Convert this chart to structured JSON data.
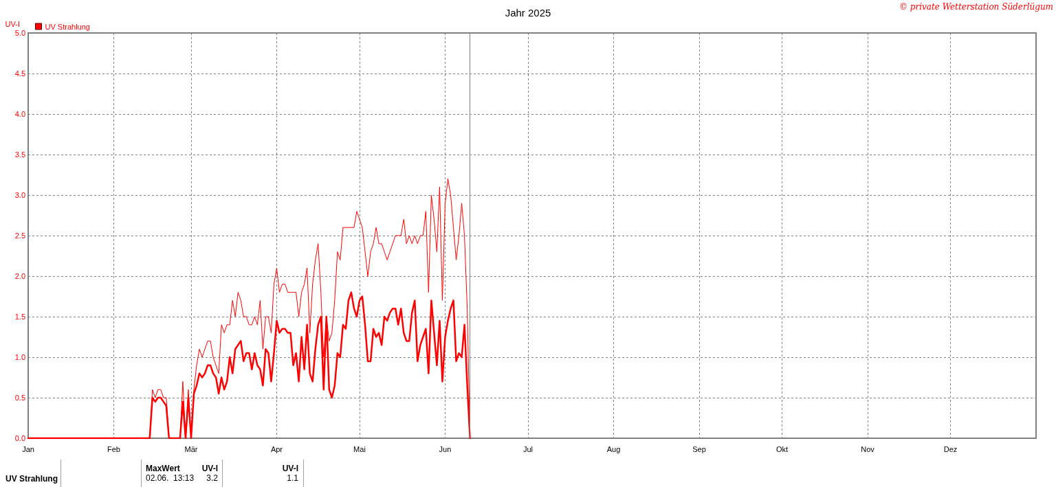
{
  "chart_data": {
    "type": "line",
    "title": "Jahr 2025",
    "ylabel": "UV-I",
    "x": [
      "2025-01-01",
      "2025-02-14",
      "2025-02-15",
      "2025-02-16",
      "2025-02-17",
      "2025-02-18",
      "2025-02-19",
      "2025-02-20",
      "2025-02-21",
      "2025-02-25",
      "2025-02-26",
      "2025-02-27",
      "2025-02-28",
      "2025-03-01",
      "2025-03-02",
      "2025-03-03",
      "2025-03-04",
      "2025-03-05",
      "2025-03-06",
      "2025-03-07",
      "2025-03-08",
      "2025-03-09",
      "2025-03-10",
      "2025-03-11",
      "2025-03-12",
      "2025-03-13",
      "2025-03-14",
      "2025-03-15",
      "2025-03-16",
      "2025-03-17",
      "2025-03-18",
      "2025-03-19",
      "2025-03-20",
      "2025-03-21",
      "2025-03-22",
      "2025-03-23",
      "2025-03-24",
      "2025-03-25",
      "2025-03-26",
      "2025-03-27",
      "2025-03-28",
      "2025-03-29",
      "2025-03-30",
      "2025-03-31",
      "2025-04-01",
      "2025-04-02",
      "2025-04-03",
      "2025-04-04",
      "2025-04-05",
      "2025-04-06",
      "2025-04-07",
      "2025-04-08",
      "2025-04-09",
      "2025-04-10",
      "2025-04-11",
      "2025-04-12",
      "2025-04-13",
      "2025-04-14",
      "2025-04-15",
      "2025-04-16",
      "2025-04-17",
      "2025-04-18",
      "2025-04-19",
      "2025-04-20",
      "2025-04-21",
      "2025-04-22",
      "2025-04-23",
      "2025-04-24",
      "2025-04-25",
      "2025-04-26",
      "2025-04-27",
      "2025-04-28",
      "2025-04-29",
      "2025-04-30",
      "2025-05-01",
      "2025-05-02",
      "2025-05-03",
      "2025-05-04",
      "2025-05-05",
      "2025-05-06",
      "2025-05-07",
      "2025-05-08",
      "2025-05-09",
      "2025-05-10",
      "2025-05-11",
      "2025-05-12",
      "2025-05-13",
      "2025-05-14",
      "2025-05-15",
      "2025-05-16",
      "2025-05-17",
      "2025-05-18",
      "2025-05-19",
      "2025-05-20",
      "2025-05-21",
      "2025-05-22",
      "2025-05-23",
      "2025-05-24",
      "2025-05-25",
      "2025-05-26",
      "2025-05-27",
      "2025-05-28",
      "2025-05-29",
      "2025-05-30",
      "2025-05-31",
      "2025-06-01",
      "2025-06-02",
      "2025-06-03",
      "2025-06-04",
      "2025-06-05",
      "2025-06-06",
      "2025-06-07",
      "2025-06-08",
      "2025-06-09",
      "2025-06-10"
    ],
    "series": [
      {
        "name": "UV Strahlung",
        "color": "#ff0000",
        "values": [
          0,
          0,
          0.6,
          0.5,
          0.6,
          0.6,
          0.5,
          0.5,
          0,
          0,
          0.7,
          0,
          0.6,
          0,
          0.6,
          0.9,
          1.1,
          1.0,
          1.1,
          1.2,
          1.2,
          1.0,
          0.9,
          0.8,
          1.4,
          1.3,
          1.4,
          1.4,
          1.7,
          1.5,
          1.8,
          1.7,
          1.5,
          1.5,
          1.4,
          1.4,
          1.5,
          1.4,
          1.7,
          1.1,
          1.5,
          1.5,
          1.3,
          1.9,
          2.1,
          1.8,
          1.9,
          1.9,
          1.8,
          1.8,
          1.8,
          1.8,
          1.5,
          1.8,
          1.9,
          2.1,
          1.3,
          1.9,
          2.2,
          2.4,
          1.8,
          1.0,
          1.5,
          1.2,
          1.3,
          1.7,
          2.3,
          2.2,
          2.6,
          2.6,
          2.6,
          2.6,
          2.6,
          2.8,
          2.7,
          2.6,
          2.3,
          2.0,
          2.3,
          2.4,
          2.6,
          2.4,
          2.4,
          2.3,
          2.2,
          2.3,
          2.4,
          2.5,
          2.5,
          2.5,
          2.7,
          2.4,
          2.5,
          2.4,
          2.5,
          2.4,
          2.5,
          2.5,
          2.8,
          1.8,
          3.0,
          2.7,
          2.3,
          3.1,
          1.7,
          2.9,
          3.2,
          3.0,
          2.6,
          2.2,
          2.5,
          2.9,
          2.5,
          1.6,
          0
        ]
      },
      {
        "color": "#ff0000",
        "values": [
          0,
          0,
          0.5,
          0.45,
          0.5,
          0.5,
          0.45,
          0.4,
          0,
          0,
          0.45,
          0,
          0.5,
          0,
          0.55,
          0.65,
          0.8,
          0.75,
          0.8,
          0.9,
          0.9,
          0.8,
          0.75,
          0.55,
          0.75,
          0.6,
          0.7,
          1.0,
          0.8,
          1.1,
          1.15,
          1.2,
          0.95,
          1.05,
          1.05,
          0.85,
          1.05,
          0.9,
          0.85,
          0.65,
          1.1,
          1.05,
          0.7,
          1.05,
          1.45,
          1.3,
          1.35,
          1.35,
          1.3,
          1.3,
          0.9,
          1.05,
          0.7,
          1.25,
          0.85,
          1.4,
          0.8,
          0.7,
          1.1,
          1.4,
          1.5,
          0.6,
          1.5,
          0.6,
          0.5,
          0.65,
          1.05,
          1.0,
          1.4,
          1.35,
          1.7,
          1.8,
          1.6,
          1.5,
          1.7,
          1.75,
          1.4,
          0.95,
          0.95,
          1.35,
          1.25,
          1.3,
          1.15,
          1.5,
          1.45,
          1.55,
          1.6,
          1.6,
          1.4,
          1.6,
          1.3,
          1.2,
          1.2,
          1.55,
          1.7,
          0.95,
          1.15,
          1.25,
          1.35,
          0.8,
          1.7,
          1.3,
          0.9,
          1.45,
          0.7,
          1.25,
          1.45,
          1.6,
          1.7,
          0.95,
          1.05,
          1.0,
          1.4,
          0.65,
          0
        ]
      }
    ],
    "xlim": [
      "2025-01-01",
      "2026-01-01"
    ],
    "xticks": [
      {
        "value": "2025-01-01",
        "label": "Jan"
      },
      {
        "value": "2025-02-01",
        "label": "Feb"
      },
      {
        "value": "2025-03-01",
        "label": "Mär"
      },
      {
        "value": "2025-04-01",
        "label": "Apr"
      },
      {
        "value": "2025-05-01",
        "label": "Mai"
      },
      {
        "value": "2025-06-01",
        "label": "Jun"
      },
      {
        "value": "2025-07-01",
        "label": "Jul"
      },
      {
        "value": "2025-08-01",
        "label": "Aug"
      },
      {
        "value": "2025-09-01",
        "label": "Sep"
      },
      {
        "value": "2025-10-01",
        "label": "Okt"
      },
      {
        "value": "2025-11-01",
        "label": "Nov"
      },
      {
        "value": "2025-12-01",
        "label": "Dez"
      }
    ],
    "ylim": [
      0,
      5
    ],
    "yticks": [
      {
        "value": 0,
        "label": "0.0"
      },
      {
        "value": 0.5,
        "label": "0.5"
      },
      {
        "value": 1,
        "label": "1.0"
      },
      {
        "value": 1.5,
        "label": "1.5"
      },
      {
        "value": 2,
        "label": "2.0"
      },
      {
        "value": 2.5,
        "label": "2.5"
      },
      {
        "value": 3,
        "label": "3.0"
      },
      {
        "value": 3.5,
        "label": "3.5"
      },
      {
        "value": 4,
        "label": "4.0"
      },
      {
        "value": 4.5,
        "label": "4.5"
      },
      {
        "value": 5,
        "label": "5.0"
      }
    ],
    "ref_lines": [
      {
        "axis": "x",
        "value": "2025-06-10",
        "color": "#808080"
      }
    ],
    "grid": true,
    "legend": "top left",
    "marker": "none",
    "line_style": "solid",
    "annotations": [
      "© private Wetterstation Süderlügum",
      "UV Strahlung",
      "MaxWert",
      "02.06.  13:13",
      "UV-I",
      "3.2",
      "UV-I",
      "1.1"
    ]
  }
}
